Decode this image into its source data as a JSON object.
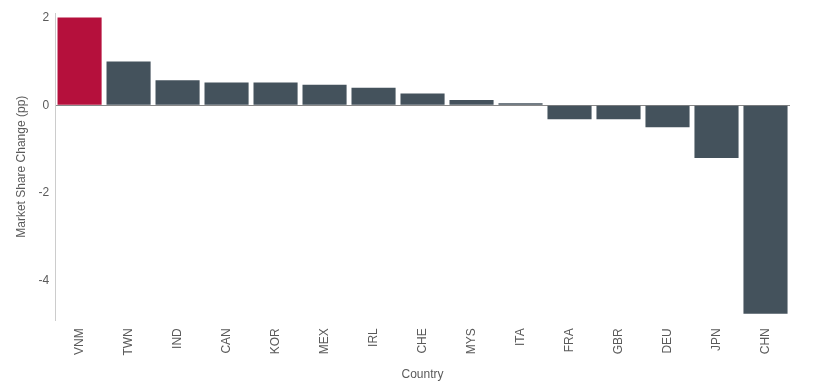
{
  "chart_data": {
    "type": "bar",
    "x_label": "Country",
    "y_label": "Market Share Change (pp)",
    "categories": [
      "VNM",
      "TWN",
      "IND",
      "CAN",
      "KOR",
      "MEX",
      "IRL",
      "CHE",
      "MYS",
      "ITA",
      "FRA",
      "GBR",
      "DEU",
      "JPN",
      "CHN"
    ],
    "values": [
      2.0,
      1.0,
      0.57,
      0.52,
      0.52,
      0.47,
      0.4,
      0.27,
      0.12,
      0.05,
      -0.32,
      -0.32,
      -0.5,
      -1.2,
      -4.75
    ],
    "colors": [
      "#b5103c",
      "#44525c",
      "#44525c",
      "#44525c",
      "#44525c",
      "#44525c",
      "#44525c",
      "#44525c",
      "#44525c",
      "#44525c",
      "#44525c",
      "#44525c",
      "#44525c",
      "#44525c",
      "#44525c"
    ],
    "ylim": [
      -4.9,
      2.1
    ],
    "yticks": [
      -4,
      -2,
      0,
      2
    ],
    "grid": false
  }
}
